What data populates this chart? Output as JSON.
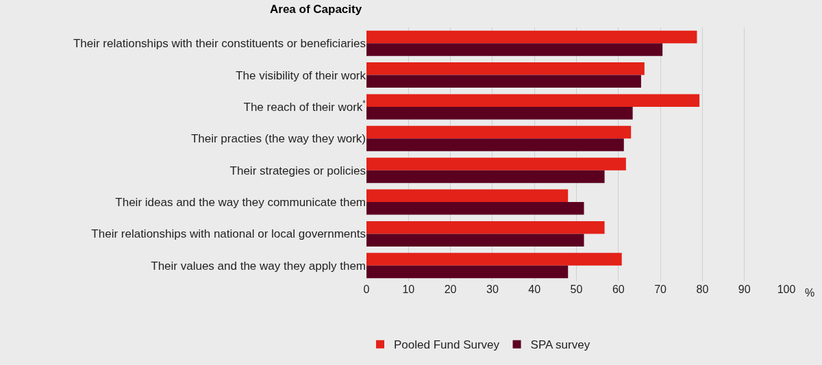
{
  "chart_data": {
    "type": "bar",
    "orientation": "horizontal",
    "ylabel": "Area of Capacity",
    "xlabel": "%",
    "categories": [
      "Their relationships with their constituents or beneficiaries",
      "The visibility of their work",
      "The reach of their work$^{*}$",
      "Their practies (the way they work)",
      "Their strategies or policies",
      "Their ideas and the way they communicate them",
      "Their relationships with national or local governments",
      "Their values and the way they apply them"
    ],
    "series": [
      {
        "name": "Pooled Fund Survey",
        "color": "#e32219",
        "values": [
          78.7,
          66.2,
          79.3,
          63,
          61.8,
          48,
          56.7,
          60.8
        ]
      },
      {
        "name": "SPA survey",
        "color": "#5c0020",
        "values": [
          70.5,
          65.4,
          63.4,
          61.3,
          56.7,
          51.8,
          51.8,
          48
        ]
      }
    ],
    "xlim": [
      0,
      100
    ],
    "xticks": [
      0,
      10,
      20,
      30,
      40,
      50,
      60,
      70,
      80,
      90,
      100
    ],
    "grid": "x",
    "legend": "bottom"
  }
}
